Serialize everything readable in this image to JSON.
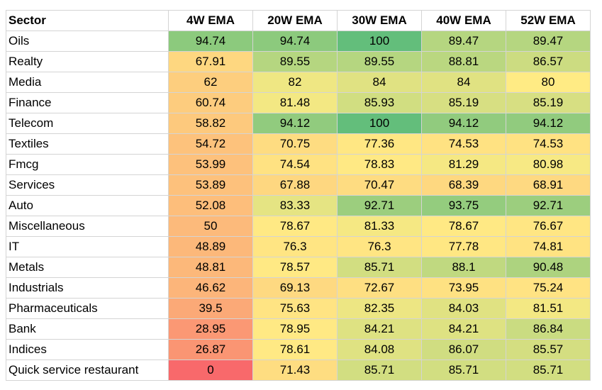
{
  "colors": {
    "scale_low": "#f8696b",
    "scale_mid": "#ffeb84",
    "scale_high": "#63be7b",
    "grid_line": "#d4d4d4"
  },
  "chart_data": {
    "type": "heatmap",
    "row_header": "Sector",
    "columns": [
      "4W EMA",
      "20W EMA",
      "30W EMA",
      "40W EMA",
      "52W EMA"
    ],
    "rows": [
      {
        "sector": "Oils",
        "values": [
          94.74,
          94.74,
          100,
          89.47,
          89.47
        ]
      },
      {
        "sector": "Realty",
        "values": [
          67.91,
          89.55,
          89.55,
          88.81,
          86.57
        ]
      },
      {
        "sector": "Media",
        "values": [
          62,
          82,
          84,
          84,
          80
        ]
      },
      {
        "sector": "Finance",
        "values": [
          60.74,
          81.48,
          85.93,
          85.19,
          85.19
        ]
      },
      {
        "sector": "Telecom",
        "values": [
          58.82,
          94.12,
          100,
          94.12,
          94.12
        ]
      },
      {
        "sector": "Textiles",
        "values": [
          54.72,
          70.75,
          77.36,
          74.53,
          74.53
        ]
      },
      {
        "sector": "Fmcg",
        "values": [
          53.99,
          74.54,
          78.83,
          81.29,
          80.98
        ]
      },
      {
        "sector": "Services",
        "values": [
          53.89,
          67.88,
          70.47,
          68.39,
          68.91
        ]
      },
      {
        "sector": "Auto",
        "values": [
          52.08,
          83.33,
          92.71,
          93.75,
          92.71
        ]
      },
      {
        "sector": "Miscellaneous",
        "values": [
          50,
          78.67,
          81.33,
          78.67,
          76.67
        ]
      },
      {
        "sector": "IT",
        "values": [
          48.89,
          76.3,
          76.3,
          77.78,
          74.81
        ]
      },
      {
        "sector": "Metals",
        "values": [
          48.81,
          78.57,
          85.71,
          88.1,
          90.48
        ]
      },
      {
        "sector": "Industrials",
        "values": [
          46.62,
          69.13,
          72.67,
          73.95,
          75.24
        ]
      },
      {
        "sector": "Pharmaceuticals",
        "values": [
          39.5,
          75.63,
          82.35,
          84.03,
          81.51
        ]
      },
      {
        "sector": "Bank",
        "values": [
          28.95,
          78.95,
          84.21,
          84.21,
          86.84
        ]
      },
      {
        "sector": "Indices",
        "values": [
          26.87,
          78.61,
          84.08,
          86.07,
          85.57
        ]
      },
      {
        "sector": "Quick service restaurant",
        "values": [
          0,
          71.43,
          85.71,
          85.71,
          85.71
        ]
      }
    ]
  }
}
